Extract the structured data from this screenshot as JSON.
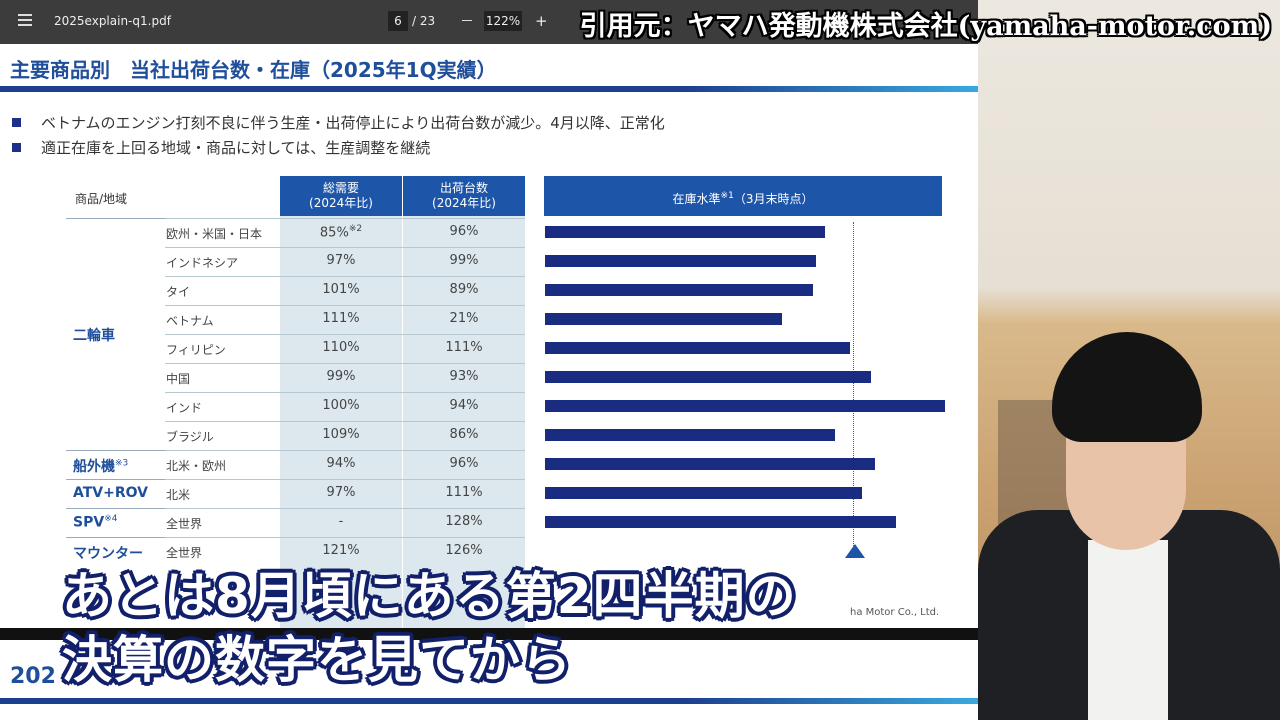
{
  "viewer": {
    "filename": "2025explain-q1.pdf",
    "page": "6",
    "pages": "/ 23",
    "zoom": "122%"
  },
  "credit": "引用元：ヤマハ発動機株式会社(yamaha-motor.com)",
  "slide": {
    "title": "主要商品別　当社出荷台数・在庫（2025年1Q実績）",
    "bullets": [
      "ベトナムのエンジン打刻不良に伴う生産・出荷停止により出荷台数が減少。4月以降、正常化",
      "適正在庫を上回る地域・商品に対しては、生産調整を継続"
    ],
    "headers": {
      "product": "商品/地域",
      "demand": [
        "総需要",
        "(2024年比)"
      ],
      "shipments": [
        "出荷台数",
        "(2024年比)"
      ],
      "stock": "在庫水準",
      "stock_note": "※1",
      "stock_period": "（3月末時点）"
    },
    "groups": [
      {
        "name": "二輪車",
        "rows": [
          {
            "region": "欧州・米国・日本",
            "demand": "85%",
            "demand_note": "※2",
            "shipments": "96%",
            "stock": 91
          },
          {
            "region": "インドネシア",
            "demand": "97%",
            "shipments": "99%",
            "stock": 88
          },
          {
            "region": "タイ",
            "demand": "101%",
            "shipments": "89%",
            "stock": 87
          },
          {
            "region": "ベトナム",
            "demand": "111%",
            "shipments": "21%",
            "stock": 77
          },
          {
            "region": "フィリピン",
            "demand": "110%",
            "shipments": "111%",
            "stock": 99
          },
          {
            "region": "中国",
            "demand": "99%",
            "shipments": "93%",
            "stock": 106
          },
          {
            "region": "インド",
            "demand": "100%",
            "shipments": "94%",
            "stock": 130
          },
          {
            "region": "ブラジル",
            "demand": "109%",
            "shipments": "86%",
            "stock": 94
          }
        ]
      },
      {
        "name": "船外機",
        "note": "※3",
        "rows": [
          {
            "region": "北米・欧州",
            "demand": "94%",
            "shipments": "96%",
            "stock": 107
          }
        ]
      },
      {
        "name": "ATV+ROV",
        "rows": [
          {
            "region": "北米",
            "demand": "97%",
            "shipments": "111%",
            "stock": 103
          }
        ]
      },
      {
        "name": "SPV",
        "note": "※4",
        "rows": [
          {
            "region": "全世界",
            "demand": "-",
            "shipments": "128%",
            "stock": 114
          }
        ]
      },
      {
        "name": "マウンター",
        "rows": [
          {
            "region": "全世界",
            "demand": "121%",
            "shipments": "126%"
          }
        ]
      }
    ],
    "footer": "ha Motor Co., Ltd."
  },
  "next_slide_title": "202",
  "caption": [
    "あとは8月頃にある第2四半期の",
    "決算の数字を見てから"
  ]
}
